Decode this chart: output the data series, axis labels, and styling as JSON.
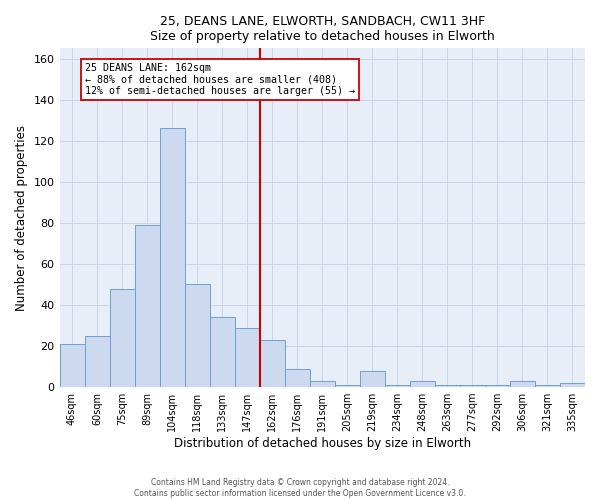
{
  "title1": "25, DEANS LANE, ELWORTH, SANDBACH, CW11 3HF",
  "title2": "Size of property relative to detached houses in Elworth",
  "xlabel": "Distribution of detached houses by size in Elworth",
  "ylabel": "Number of detached properties",
  "bar_labels": [
    "46sqm",
    "60sqm",
    "75sqm",
    "89sqm",
    "104sqm",
    "118sqm",
    "133sqm",
    "147sqm",
    "162sqm",
    "176sqm",
    "191sqm",
    "205sqm",
    "219sqm",
    "234sqm",
    "248sqm",
    "263sqm",
    "277sqm",
    "292sqm",
    "306sqm",
    "321sqm",
    "335sqm"
  ],
  "bar_heights": [
    21,
    25,
    48,
    79,
    126,
    50,
    34,
    29,
    23,
    9,
    3,
    1,
    8,
    1,
    3,
    1,
    1,
    1,
    3,
    1,
    2
  ],
  "bar_color": "#ccd9ee",
  "bar_edge_color": "#6b9fd4",
  "vline_color": "#cc0000",
  "annotation_title": "25 DEANS LANE: 162sqm",
  "annotation_line1": "← 88% of detached houses are smaller (408)",
  "annotation_line2": "12% of semi-detached houses are larger (55) →",
  "annotation_box_color": "#ffffff",
  "annotation_box_edge": "#cc0000",
  "ylim": [
    0,
    165
  ],
  "yticks": [
    0,
    20,
    40,
    60,
    80,
    100,
    120,
    140,
    160
  ],
  "bg_color": "#e8eef8",
  "grid_color": "#c8d4e8",
  "footer1": "Contains HM Land Registry data © Crown copyright and database right 2024.",
  "footer2": "Contains public sector information licensed under the Open Government Licence v3.0."
}
